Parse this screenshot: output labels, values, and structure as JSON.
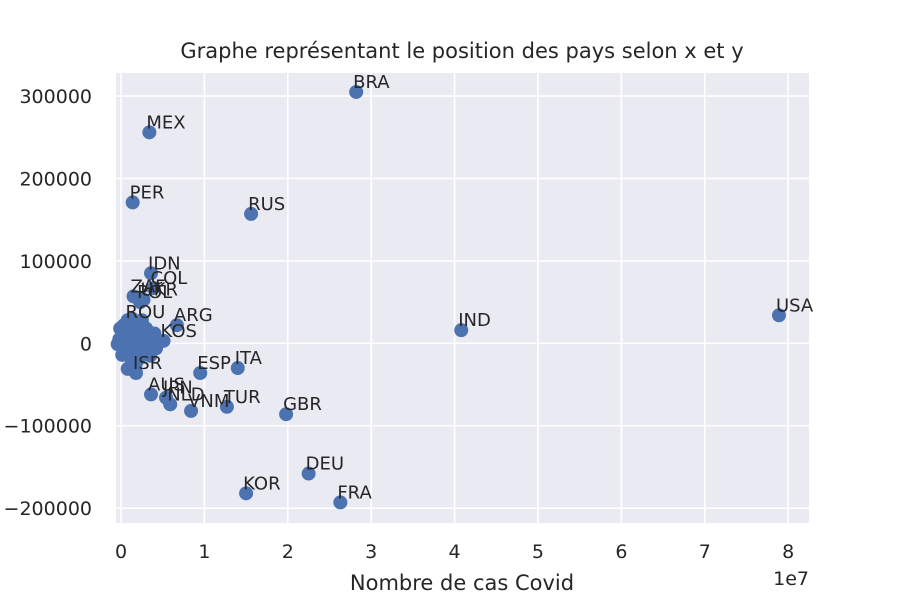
{
  "chart_data": {
    "type": "scatter",
    "title": "Graphe représentant le position des pays selon x et y",
    "xlabel": "Nombre de cas Covid",
    "ylabel": "",
    "x_offset_label": "1e7",
    "x_scale_factor": 10000000,
    "xlim": [
      -600000,
      82500000
    ],
    "ylim": [
      -218000,
      328000
    ],
    "x_ticks": [
      0,
      10000000,
      20000000,
      30000000,
      40000000,
      50000000,
      60000000,
      70000000,
      80000000
    ],
    "x_tick_labels": [
      "0",
      "1",
      "2",
      "3",
      "4",
      "5",
      "6",
      "7",
      "8"
    ],
    "y_ticks": [
      -200000,
      -100000,
      0,
      100000,
      200000,
      300000
    ],
    "y_tick_labels": [
      "−200000",
      "−100000",
      "0",
      "100000",
      "200000",
      "300000"
    ],
    "grid": true,
    "colors": {
      "background": "#eaeaf2",
      "grid": "#ffffff",
      "marker": "#4c72b0"
    },
    "points": [
      {
        "label": "BRA",
        "x": 28200000,
        "y": 305000
      },
      {
        "label": "MEX",
        "x": 3400000,
        "y": 256000
      },
      {
        "label": "PER",
        "x": 1400000,
        "y": 171000
      },
      {
        "label": "RUS",
        "x": 15600000,
        "y": 157000
      },
      {
        "label": "IDN",
        "x": 3600000,
        "y": 85000
      },
      {
        "label": "COL",
        "x": 3900000,
        "y": 67000
      },
      {
        "label": "ZAF",
        "x": 1500000,
        "y": 57000
      },
      {
        "label": "POL",
        "x": 2300000,
        "y": 50000
      },
      {
        "label": "UKR",
        "x": 2700000,
        "y": 53000
      },
      {
        "label": "ARG",
        "x": 6700000,
        "y": 22000
      },
      {
        "label": "ROU",
        "x": 900000,
        "y": 26000
      },
      {
        "label": "KOS",
        "x": 5100000,
        "y": 3000
      },
      {
        "label": "IND",
        "x": 40800000,
        "y": 16000
      },
      {
        "label": "USA",
        "x": 78900000,
        "y": 34000
      },
      {
        "label": "ESP",
        "x": 9500000,
        "y": -36000
      },
      {
        "label": "ITA",
        "x": 14000000,
        "y": -30000
      },
      {
        "label": "ISR",
        "x": 1800000,
        "y": -36000
      },
      {
        "label": "AUS",
        "x": 3600000,
        "y": -62000
      },
      {
        "label": "JPN",
        "x": 5400000,
        "y": -66000
      },
      {
        "label": "NLD",
        "x": 5900000,
        "y": -74000
      },
      {
        "label": "VNM",
        "x": 8400000,
        "y": -82000
      },
      {
        "label": "TUR",
        "x": 12700000,
        "y": -77000
      },
      {
        "label": "GBR",
        "x": 19800000,
        "y": -86000
      },
      {
        "label": "DEU",
        "x": 22500000,
        "y": -158000
      },
      {
        "label": "KOR",
        "x": 15000000,
        "y": -182000
      },
      {
        "label": "FRA",
        "x": 26300000,
        "y": -193000
      },
      {
        "label": "",
        "x": 800000,
        "y": -31000
      },
      {
        "label": "",
        "x": 1300000,
        "y": -20000
      },
      {
        "label": "",
        "x": 2200000,
        "y": -18000
      },
      {
        "label": "",
        "x": 2800000,
        "y": -12000
      },
      {
        "label": "",
        "x": 3500000,
        "y": -15000
      },
      {
        "label": "",
        "x": 300000,
        "y": 4000
      },
      {
        "label": "",
        "x": 500000,
        "y": 10000
      },
      {
        "label": "",
        "x": 700000,
        "y": 16000
      },
      {
        "label": "",
        "x": 1000000,
        "y": 6000
      },
      {
        "label": "",
        "x": 1200000,
        "y": 14000
      },
      {
        "label": "",
        "x": 1600000,
        "y": 20000
      },
      {
        "label": "",
        "x": 1900000,
        "y": 9000
      },
      {
        "label": "",
        "x": 2100000,
        "y": 24000
      },
      {
        "label": "",
        "x": 2400000,
        "y": 12000
      },
      {
        "label": "",
        "x": 2600000,
        "y": 2000
      },
      {
        "label": "",
        "x": 3000000,
        "y": 18000
      },
      {
        "label": "",
        "x": 3300000,
        "y": 7000
      },
      {
        "label": "",
        "x": 400000,
        "y": -5000
      },
      {
        "label": "",
        "x": 600000,
        "y": -10000
      },
      {
        "label": "",
        "x": 900000,
        "y": -3000
      },
      {
        "label": "",
        "x": 1100000,
        "y": -8000
      },
      {
        "label": "",
        "x": 1400000,
        "y": -2000
      },
      {
        "label": "",
        "x": 1700000,
        "y": -6000
      },
      {
        "label": "",
        "x": 2000000,
        "y": 1000
      },
      {
        "label": "",
        "x": 200000,
        "y": 12000
      },
      {
        "label": "",
        "x": 100000,
        "y": 2000
      },
      {
        "label": "",
        "x": -200000,
        "y": 5000
      },
      {
        "label": "",
        "x": -400000,
        "y": -1000
      },
      {
        "label": "",
        "x": -100000,
        "y": 18000
      },
      {
        "label": "",
        "x": 150000,
        "y": -14000
      },
      {
        "label": "",
        "x": 350000,
        "y": 22000
      },
      {
        "label": "",
        "x": 800000,
        "y": 28000
      },
      {
        "label": "",
        "x": 1300000,
        "y": 30000
      },
      {
        "label": "",
        "x": 2500000,
        "y": 28000
      },
      {
        "label": "",
        "x": 3100000,
        "y": -4000
      },
      {
        "label": "",
        "x": 3700000,
        "y": 3000
      },
      {
        "label": "",
        "x": 4200000,
        "y": -6000
      },
      {
        "label": "",
        "x": 4000000,
        "y": 12000
      },
      {
        "label": "",
        "x": 1800000,
        "y": -24000
      }
    ]
  }
}
